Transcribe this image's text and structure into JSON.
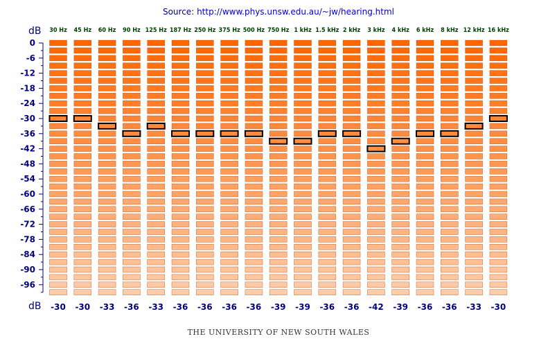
{
  "source": {
    "label": "Source:",
    "url": "http://www.phys.unsw.edu.au/~jw/hearing.html"
  },
  "footer": "THE UNIVERSITY OF NEW SOUTH WALES",
  "chart_data": {
    "type": "heatmap",
    "unit_label_top": "dB",
    "unit_label_bottom": "dB",
    "categories": [
      "30 Hz",
      "45 Hz",
      "60 Hz",
      "90 Hz",
      "125 Hz",
      "187 Hz",
      "250 Hz",
      "375 Hz",
      "500 Hz",
      "750 Hz",
      "1 kHz",
      "1.5 kHz",
      "2 kHz",
      "3 kHz",
      "4 kHz",
      "6 kHz",
      "8 kHz",
      "12 kHz",
      "16 kHz"
    ],
    "values": [
      -30,
      -30,
      -33,
      -36,
      -33,
      -36,
      -36,
      -36,
      -36,
      -39,
      -39,
      -36,
      -36,
      -42,
      -39,
      -36,
      -36,
      -33,
      -30
    ],
    "value_labels": [
      "-30",
      "-30",
      "-33",
      "-36",
      "-33",
      "-36",
      "-36",
      "-36",
      "-36",
      "-39",
      "-39",
      "-36",
      "-36",
      "-42",
      "-39",
      "-36",
      "-36",
      "-33",
      "-30"
    ],
    "y_ticks": [
      "0",
      "-6",
      "-12",
      "-18",
      "-24",
      "-30",
      "-36",
      "-42",
      "-48",
      "-54",
      "-60",
      "-66",
      "-72",
      "-78",
      "-84",
      "-90",
      "-96"
    ],
    "ylim": [
      -99,
      0
    ],
    "level_step_db": 3,
    "colors": {
      "bar_top": "#ff6600",
      "bar_bottom": "#ffccaa",
      "bar_stroke": "#a04000",
      "highlight_stroke": "#000000",
      "axis": "#000080"
    }
  }
}
